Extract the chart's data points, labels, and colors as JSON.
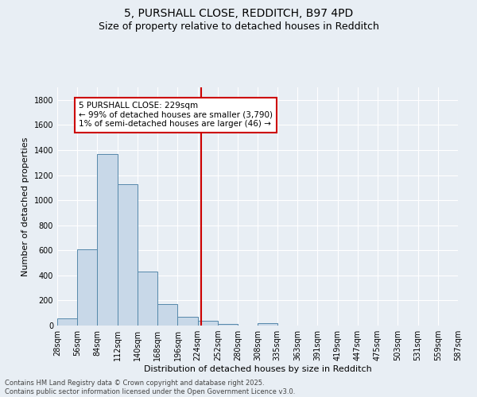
{
  "title_line1": "5, PURSHALL CLOSE, REDDITCH, B97 4PD",
  "title_line2": "Size of property relative to detached houses in Redditch",
  "xlabel": "Distribution of detached houses by size in Redditch",
  "ylabel": "Number of detached properties",
  "bar_edges": [
    28,
    56,
    84,
    112,
    140,
    168,
    196,
    224,
    252,
    280,
    308,
    335,
    363,
    391,
    419,
    447,
    475,
    503,
    531,
    559,
    587
  ],
  "bar_heights": [
    55,
    605,
    1365,
    1125,
    430,
    170,
    68,
    35,
    15,
    0,
    18,
    0,
    0,
    0,
    0,
    0,
    0,
    0,
    0,
    0
  ],
  "bar_color": "#c8d8e8",
  "bar_edge_color": "#5588aa",
  "vline_x": 229,
  "vline_color": "#cc0000",
  "annotation_text": "5 PURSHALL CLOSE: 229sqm\n← 99% of detached houses are smaller (3,790)\n1% of semi-detached houses are larger (46) →",
  "annotation_box_facecolor": "white",
  "annotation_box_edgecolor": "#cc0000",
  "ylim": [
    0,
    1900
  ],
  "yticks": [
    0,
    200,
    400,
    600,
    800,
    1000,
    1200,
    1400,
    1600,
    1800
  ],
  "background_color": "#e8eef4",
  "grid_color": "white",
  "tick_labels": [
    "28sqm",
    "56sqm",
    "84sqm",
    "112sqm",
    "140sqm",
    "168sqm",
    "196sqm",
    "224sqm",
    "252sqm",
    "280sqm",
    "308sqm",
    "335sqm",
    "363sqm",
    "391sqm",
    "419sqm",
    "447sqm",
    "475sqm",
    "503sqm",
    "531sqm",
    "559sqm",
    "587sqm"
  ],
  "footer_text": "Contains HM Land Registry data © Crown copyright and database right 2025.\nContains public sector information licensed under the Open Government Licence v3.0.",
  "title_fontsize": 10,
  "subtitle_fontsize": 9,
  "axis_label_fontsize": 8,
  "tick_fontsize": 7,
  "annotation_fontsize": 7.5,
  "footer_fontsize": 6
}
